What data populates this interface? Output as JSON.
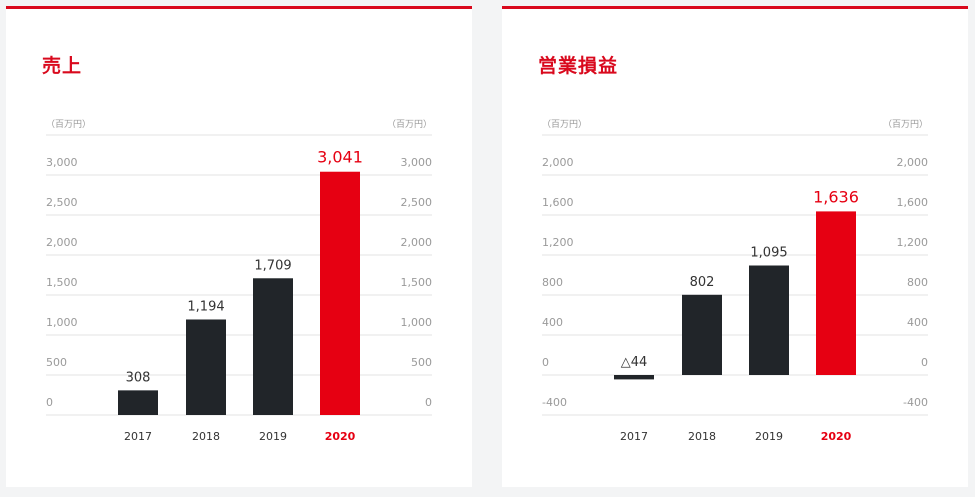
{
  "colors": {
    "accent": "#e60012",
    "bar": "#212529",
    "axis_text": "#9a9a9a",
    "grid": "#e3e3e3",
    "label": "#333333"
  },
  "chart_data": [
    {
      "type": "bar",
      "title": "売上",
      "unit_label": "（百万円）",
      "categories": [
        "2017",
        "2018",
        "2019",
        "2020"
      ],
      "values": [
        308,
        1194,
        1709,
        3041
      ],
      "value_labels": [
        "308",
        "1,194",
        "1,709",
        "3,041"
      ],
      "highlight_index": 3,
      "ticks": [
        0,
        500,
        1000,
        1500,
        2000,
        2500,
        3000
      ],
      "tick_labels": [
        "0",
        "500",
        "1,000",
        "1,500",
        "2,000",
        "2,500",
        "3,000"
      ],
      "ylim": [
        0,
        3000
      ],
      "grid": true,
      "dual_axis_labels": true
    },
    {
      "type": "bar",
      "title": "営業損益",
      "unit_label": "（百万円）",
      "categories": [
        "2017",
        "2018",
        "2019",
        "2020"
      ],
      "values": [
        -44,
        802,
        1095,
        1636
      ],
      "value_labels": [
        "△44",
        "802",
        "1,095",
        "1,636"
      ],
      "highlight_index": 3,
      "ticks": [
        -400,
        0,
        400,
        800,
        1200,
        1600,
        2000
      ],
      "tick_labels": [
        "-400",
        "0",
        "400",
        "800",
        "1,200",
        "1,600",
        "2,000"
      ],
      "ylim": [
        -400,
        2000
      ],
      "grid": true,
      "dual_axis_labels": true
    }
  ]
}
